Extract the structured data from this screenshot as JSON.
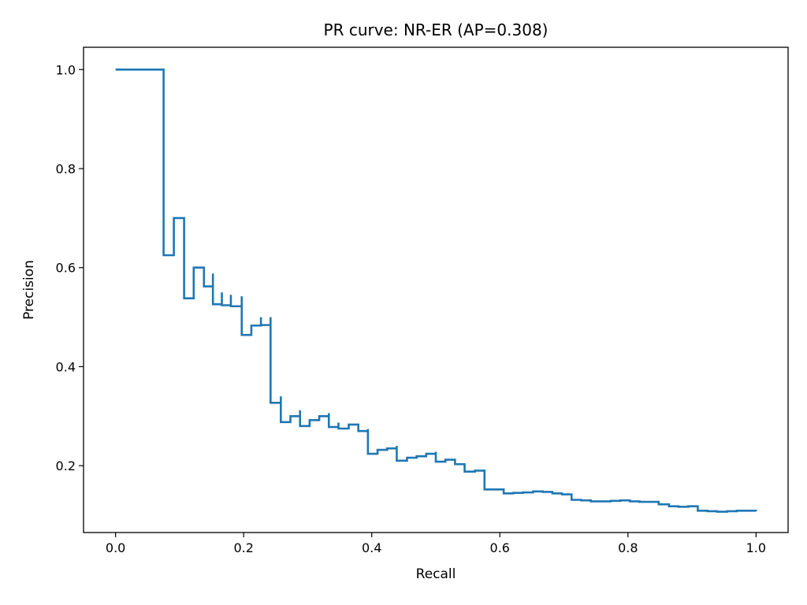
{
  "chart_data": {
    "type": "line",
    "drawstyle": "steps-post",
    "title": "PR curve: NR-ER (AP=0.308)",
    "xlabel": "Recall",
    "ylabel": "Precision",
    "xlim": [
      -0.05,
      1.05
    ],
    "ylim": [
      0.065,
      1.045
    ],
    "grid": false,
    "xticks": [
      0.0,
      0.2,
      0.4,
      0.6,
      0.8,
      1.0
    ],
    "xtick_labels": [
      "0.0",
      "0.2",
      "0.4",
      "0.6",
      "0.8",
      "1.0"
    ],
    "yticks": [
      0.2,
      0.4,
      0.6,
      0.8,
      1.0
    ],
    "ytick_labels": [
      "0.2",
      "0.4",
      "0.6",
      "0.8",
      "1.0"
    ],
    "line_color": "#1f77b4",
    "series": [
      {
        "recall": [
          0.0,
          0.075,
          0.075,
          0.091,
          0.107,
          0.107,
          0.122,
          0.138,
          0.138,
          0.152,
          0.152,
          0.166,
          0.166,
          0.18,
          0.18,
          0.197,
          0.197,
          0.212,
          0.227,
          0.227,
          0.242,
          0.242,
          0.258,
          0.258,
          0.273,
          0.288,
          0.288,
          0.303,
          0.318,
          0.333,
          0.333,
          0.348,
          0.348,
          0.364,
          0.379,
          0.379,
          0.394,
          0.394,
          0.409,
          0.424,
          0.439,
          0.439,
          0.455,
          0.47,
          0.485,
          0.5,
          0.5,
          0.515,
          0.53,
          0.53,
          0.545,
          0.561,
          0.576,
          0.576,
          0.591,
          0.606,
          0.621,
          0.636,
          0.652,
          0.667,
          0.682,
          0.697,
          0.712,
          0.727,
          0.742,
          0.758,
          0.773,
          0.788,
          0.803,
          0.818,
          0.833,
          0.848,
          0.864,
          0.879,
          0.894,
          0.909,
          0.924,
          0.939,
          0.955,
          0.97,
          1.0
        ],
        "precision": [
          1.0,
          1.0,
          0.625,
          0.7,
          0.7,
          0.538,
          0.6,
          0.6,
          0.562,
          0.588,
          0.526,
          0.55,
          0.524,
          0.545,
          0.522,
          0.542,
          0.464,
          0.483,
          0.5,
          0.484,
          0.5,
          0.327,
          0.34,
          0.288,
          0.3,
          0.312,
          0.28,
          0.292,
          0.3,
          0.306,
          0.278,
          0.287,
          0.275,
          0.283,
          0.276,
          0.27,
          0.274,
          0.224,
          0.232,
          0.235,
          0.24,
          0.21,
          0.216,
          0.219,
          0.224,
          0.228,
          0.208,
          0.212,
          0.207,
          0.203,
          0.188,
          0.19,
          0.178,
          0.152,
          0.152,
          0.144,
          0.145,
          0.146,
          0.148,
          0.147,
          0.144,
          0.142,
          0.131,
          0.13,
          0.128,
          0.128,
          0.129,
          0.13,
          0.128,
          0.127,
          0.127,
          0.122,
          0.118,
          0.117,
          0.118,
          0.109,
          0.108,
          0.107,
          0.108,
          0.109,
          0.108
        ]
      }
    ]
  }
}
